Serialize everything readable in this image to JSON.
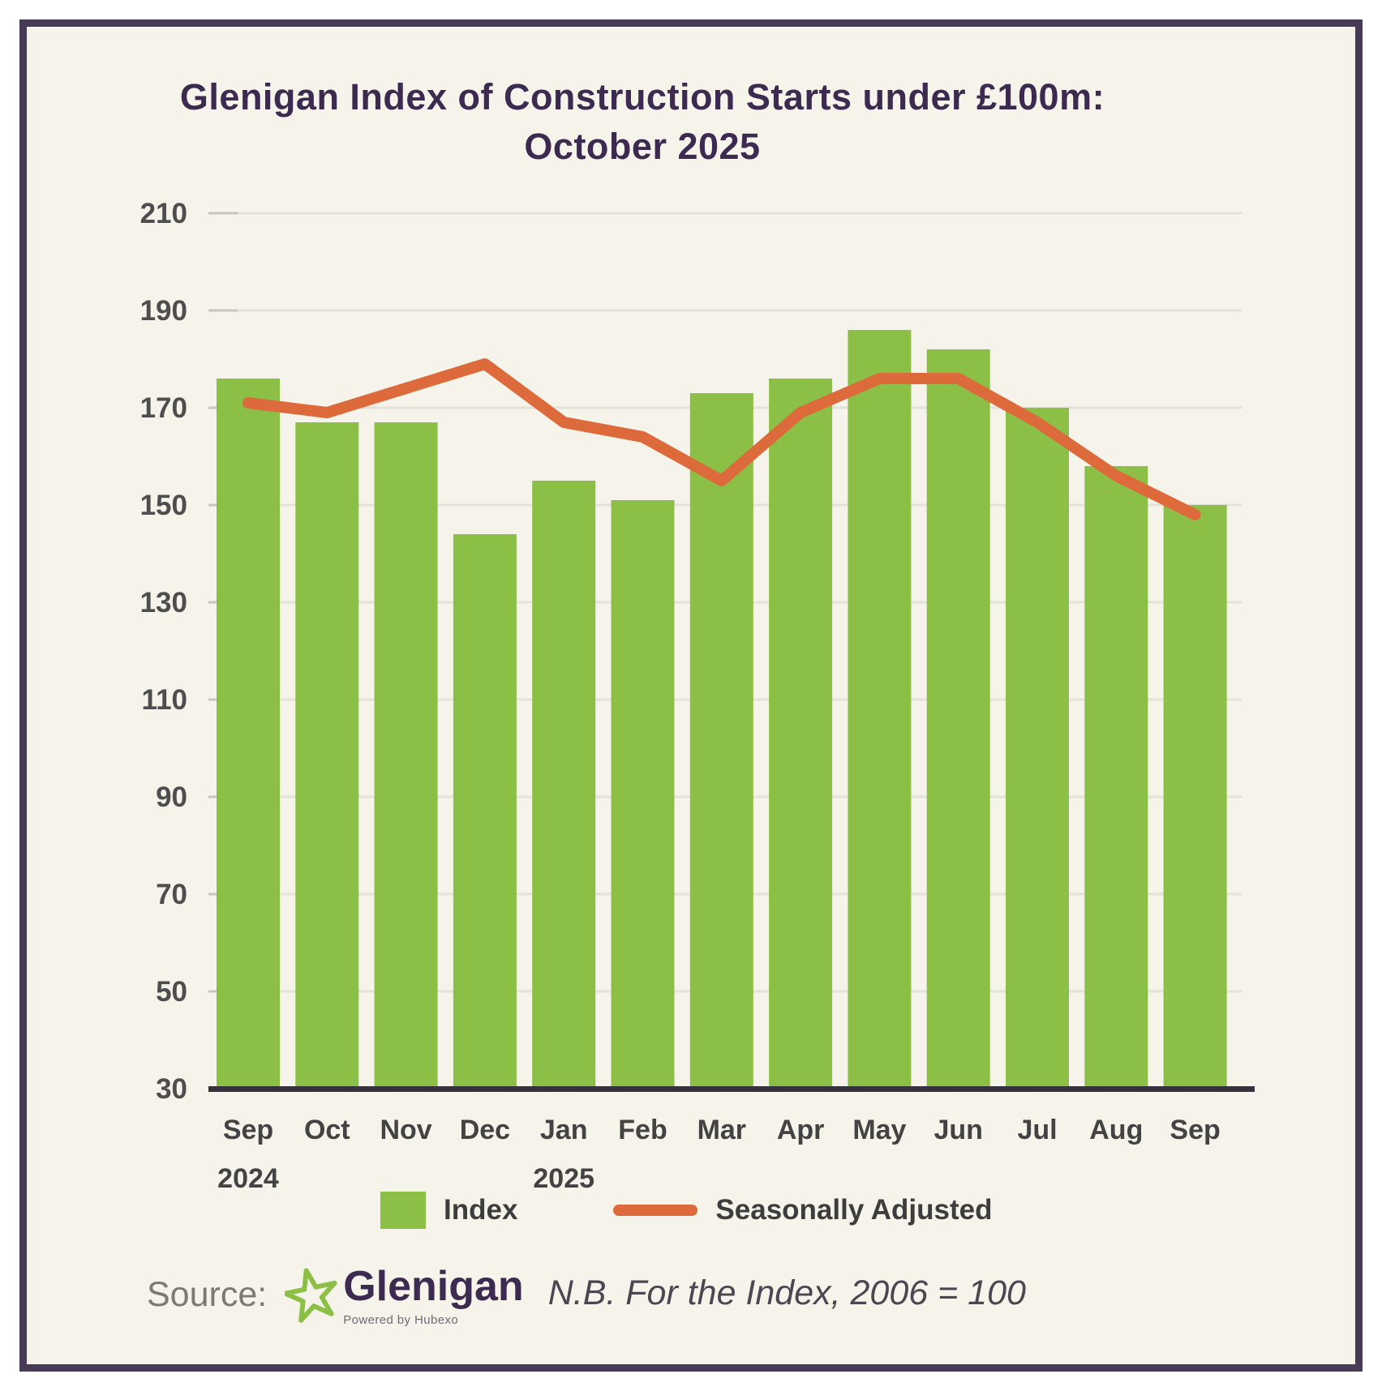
{
  "header": {
    "title_line1": "Glenigan Index of Construction Starts under £100m:",
    "title_line2": "October 2025"
  },
  "chart_data": {
    "type": "bar",
    "title": "Glenigan Index of Construction Starts under £100m: October 2025",
    "categories": [
      "Sep",
      "Oct",
      "Nov",
      "Dec",
      "Jan",
      "Feb",
      "Mar",
      "Apr",
      "May",
      "Jun",
      "Jul",
      "Aug",
      "Sep"
    ],
    "year_labels": [
      {
        "index": 0,
        "label": "2024"
      },
      {
        "index": 4,
        "label": "2025"
      }
    ],
    "series": [
      {
        "name": "Index",
        "type": "bar",
        "color": "#8cbf45",
        "values": [
          176,
          167,
          167,
          144,
          155,
          151,
          173,
          176,
          186,
          182,
          170,
          158,
          150
        ]
      },
      {
        "name": "Seasonally Adjusted",
        "type": "line",
        "color": "#dc6a3a",
        "values": [
          171,
          169,
          174,
          179,
          167,
          164,
          155,
          169,
          176,
          176,
          167,
          156,
          148
        ]
      }
    ],
    "ylim": [
      30,
      210
    ],
    "yticks": [
      30,
      50,
      70,
      90,
      110,
      130,
      150,
      170,
      190,
      210
    ],
    "grid": true,
    "legend_position": "bottom"
  },
  "footer": {
    "source_label": "Source:",
    "brand": "Glenigan",
    "brand_sub": "Powered by Hubexo",
    "note": "N.B. For the Index, 2006 = 100"
  },
  "colors": {
    "background": "#f5f3ea",
    "frame_border": "#473a56",
    "title": "#3c2a50",
    "bar": "#8cbf45",
    "line": "#dc6a3a",
    "axis_text": "#4e4e4e",
    "gridline": "#e4e3da",
    "tick_stub": "#c6c5bc",
    "baseline": "#35323b"
  }
}
